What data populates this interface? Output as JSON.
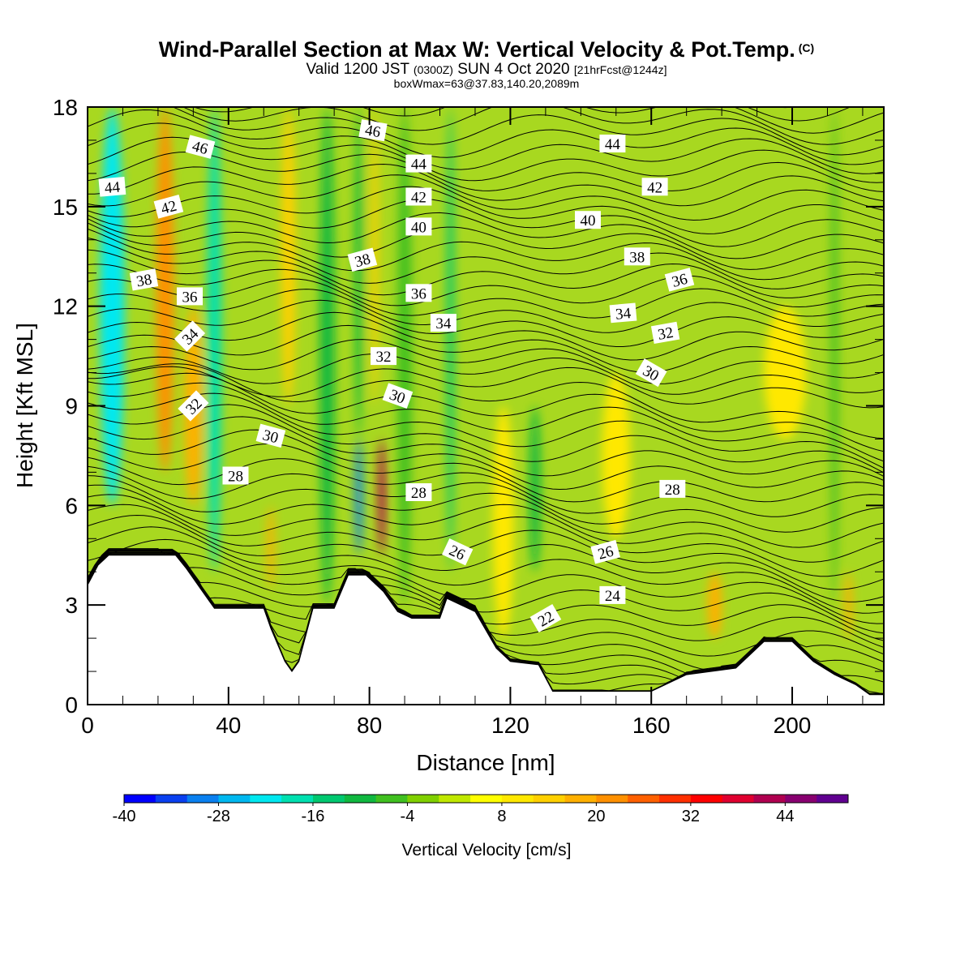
{
  "header": {
    "title": "Wind-Parallel Section at Max W: Vertical Velocity & Pot.Temp.",
    "title_mark": "(C)",
    "subtitle_valid": "Valid 1200 JST",
    "subtitle_utc": "(0300Z)",
    "subtitle_date": "SUN 4 Oct 2020",
    "subtitle_fcst": "[21hrFcst@1244z]",
    "subtitle2": "boxWmax=63@37.83,140.20,2089m"
  },
  "chart_data": {
    "type": "heatmap",
    "xlabel": "Distance [nm]",
    "ylabel": "Height [Kft MSL]",
    "xlim": [
      0,
      226
    ],
    "ylim": [
      0,
      18
    ],
    "xticks": [
      0,
      40,
      80,
      120,
      160,
      200
    ],
    "yticks": [
      0,
      3,
      6,
      9,
      12,
      15,
      18
    ],
    "colorbar": {
      "label": "Vertical Velocity [cm/s]",
      "tick_values": [
        -40,
        -28,
        -16,
        -4,
        8,
        20,
        32,
        44
      ],
      "tick_labels": [
        "-40",
        "-28",
        "-16",
        "-4",
        "8",
        "20",
        "32",
        "44"
      ],
      "bins": [
        {
          "from": -40,
          "to": -36,
          "color": "#0000ff"
        },
        {
          "from": -36,
          "to": -32,
          "color": "#0a40f0"
        },
        {
          "from": -32,
          "to": -28,
          "color": "#0a80f0"
        },
        {
          "from": -28,
          "to": -24,
          "color": "#00b8f0"
        },
        {
          "from": -24,
          "to": -20,
          "color": "#00e8f0"
        },
        {
          "from": -20,
          "to": -16,
          "color": "#00e0b0"
        },
        {
          "from": -16,
          "to": -12,
          "color": "#00c870"
        },
        {
          "from": -12,
          "to": -8,
          "color": "#10b840"
        },
        {
          "from": -8,
          "to": -4,
          "color": "#40c020"
        },
        {
          "from": -4,
          "to": 0,
          "color": "#80d000"
        },
        {
          "from": 0,
          "to": 4,
          "color": "#c0e800"
        },
        {
          "from": 4,
          "to": 8,
          "color": "#ffff00"
        },
        {
          "from": 8,
          "to": 12,
          "color": "#ffe800"
        },
        {
          "from": 12,
          "to": 16,
          "color": "#ffd000"
        },
        {
          "from": 16,
          "to": 20,
          "color": "#ffb000"
        },
        {
          "from": 20,
          "to": 24,
          "color": "#ff9000"
        },
        {
          "from": 24,
          "to": 28,
          "color": "#ff6000"
        },
        {
          "from": 28,
          "to": 32,
          "color": "#ff3000"
        },
        {
          "from": 32,
          "to": 36,
          "color": "#ff0000"
        },
        {
          "from": 36,
          "to": 40,
          "color": "#e00030"
        },
        {
          "from": 40,
          "to": 44,
          "color": "#b00050"
        },
        {
          "from": 44,
          "to": 48,
          "color": "#880070"
        },
        {
          "from": 48,
          "to": 52,
          "color": "#600090"
        }
      ]
    },
    "vertical_velocity_bands": [
      {
        "x": 7,
        "w": 7,
        "y0": 6,
        "y1": 18,
        "value": -22
      },
      {
        "x": 22,
        "w": 5,
        "y0": 7,
        "y1": 18,
        "value": 20
      },
      {
        "x": 30,
        "w": 5,
        "y0": 6,
        "y1": 12,
        "value": 16
      },
      {
        "x": 36,
        "w": 4,
        "y0": 4,
        "y1": 18,
        "value": -20
      },
      {
        "x": 52,
        "w": 2,
        "y0": 3.5,
        "y1": 6,
        "value": 18
      },
      {
        "x": 57,
        "w": 4,
        "y0": 9,
        "y1": 18,
        "value": 12
      },
      {
        "x": 68,
        "w": 4,
        "y0": 3,
        "y1": 18,
        "value": -10
      },
      {
        "x": 77,
        "w": 2,
        "y0": 4.5,
        "y1": 8,
        "value": -32
      },
      {
        "x": 77,
        "w": 2,
        "y0": 8,
        "y1": 18,
        "value": -10
      },
      {
        "x": 81.5,
        "w": 2,
        "y0": 9,
        "y1": 18,
        "value": 14
      },
      {
        "x": 83.5,
        "w": 2,
        "y0": 4.5,
        "y1": 8,
        "value": 40
      },
      {
        "x": 90,
        "w": 4,
        "y0": 3,
        "y1": 18,
        "value": -6
      },
      {
        "x": 103,
        "w": 2,
        "y0": 4,
        "y1": 18,
        "value": -16
      },
      {
        "x": 118,
        "w": 6,
        "y0": 2,
        "y1": 9,
        "value": 8
      },
      {
        "x": 127,
        "w": 3,
        "y0": 4,
        "y1": 9,
        "value": -12
      },
      {
        "x": 150,
        "w": 8,
        "y0": 5,
        "y1": 10,
        "value": 10
      },
      {
        "x": 178,
        "w": 4,
        "y0": 2,
        "y1": 4,
        "value": 16
      },
      {
        "x": 198,
        "w": 12,
        "y0": 8,
        "y1": 12,
        "value": 8
      },
      {
        "x": 212,
        "w": 2,
        "y0": 3,
        "y1": 18,
        "value": -8
      },
      {
        "x": 216,
        "w": 2,
        "y0": 2,
        "y1": 4,
        "value": 16
      }
    ],
    "theta_contours": {
      "levels": [
        22,
        24,
        26,
        28,
        30,
        32,
        34,
        36,
        38,
        40,
        42,
        44,
        46
      ],
      "labels": [
        {
          "text": "44",
          "x": 7,
          "y": 15.6,
          "rot": -5
        },
        {
          "text": "46",
          "x": 32,
          "y": 16.8,
          "rot": 15
        },
        {
          "text": "42",
          "x": 23,
          "y": 15,
          "rot": -15
        },
        {
          "text": "38",
          "x": 16,
          "y": 12.8,
          "rot": -10
        },
        {
          "text": "36",
          "x": 29,
          "y": 12.3,
          "rot": 0
        },
        {
          "text": "34",
          "x": 29,
          "y": 11.1,
          "rot": -45
        },
        {
          "text": "32",
          "x": 30,
          "y": 9,
          "rot": -45
        },
        {
          "text": "30",
          "x": 52,
          "y": 8.1,
          "rot": 15
        },
        {
          "text": "28",
          "x": 42,
          "y": 6.9,
          "rot": 0
        },
        {
          "text": "46",
          "x": 81,
          "y": 17.3,
          "rot": 10
        },
        {
          "text": "44",
          "x": 94,
          "y": 16.3,
          "rot": 0
        },
        {
          "text": "42",
          "x": 94,
          "y": 15.3,
          "rot": 0
        },
        {
          "text": "40",
          "x": 94,
          "y": 14.4,
          "rot": 0
        },
        {
          "text": "38",
          "x": 78,
          "y": 13.4,
          "rot": -15
        },
        {
          "text": "36",
          "x": 94,
          "y": 12.4,
          "rot": 0
        },
        {
          "text": "34",
          "x": 101,
          "y": 11.5,
          "rot": 0
        },
        {
          "text": "32",
          "x": 84,
          "y": 10.5,
          "rot": 0
        },
        {
          "text": "30",
          "x": 88,
          "y": 9.3,
          "rot": 20
        },
        {
          "text": "28",
          "x": 94,
          "y": 6.4,
          "rot": 0
        },
        {
          "text": "26",
          "x": 105,
          "y": 4.6,
          "rot": 25
        },
        {
          "text": "22",
          "x": 130,
          "y": 2.6,
          "rot": -30
        },
        {
          "text": "44",
          "x": 149,
          "y": 16.9,
          "rot": 0
        },
        {
          "text": "42",
          "x": 161,
          "y": 15.6,
          "rot": 0
        },
        {
          "text": "40",
          "x": 142,
          "y": 14.6,
          "rot": 0
        },
        {
          "text": "38",
          "x": 156,
          "y": 13.5,
          "rot": 0
        },
        {
          "text": "36",
          "x": 168,
          "y": 12.8,
          "rot": -15
        },
        {
          "text": "34",
          "x": 152,
          "y": 11.8,
          "rot": -5
        },
        {
          "text": "32",
          "x": 164,
          "y": 11.2,
          "rot": -10
        },
        {
          "text": "30",
          "x": 160,
          "y": 10,
          "rot": 30
        },
        {
          "text": "28",
          "x": 166,
          "y": 6.5,
          "rot": 0
        },
        {
          "text": "26",
          "x": 147,
          "y": 4.6,
          "rot": -15
        },
        {
          "text": "24",
          "x": 149,
          "y": 3.3,
          "rot": 0
        }
      ]
    },
    "terrain_profile": [
      [
        0,
        3.6
      ],
      [
        3,
        4.2
      ],
      [
        6,
        4.5
      ],
      [
        25,
        4.5
      ],
      [
        28,
        4.1
      ],
      [
        32,
        3.5
      ],
      [
        36,
        2.9
      ],
      [
        50,
        2.9
      ],
      [
        52,
        2.3
      ],
      [
        56,
        1.3
      ],
      [
        58,
        1.0
      ],
      [
        60,
        1.3
      ],
      [
        64,
        2.9
      ],
      [
        70,
        2.9
      ],
      [
        74,
        3.9
      ],
      [
        79,
        3.9
      ],
      [
        84,
        3.4
      ],
      [
        88,
        2.8
      ],
      [
        92,
        2.6
      ],
      [
        100,
        2.6
      ],
      [
        102,
        3.2
      ],
      [
        110,
        2.8
      ],
      [
        116,
        1.7
      ],
      [
        120,
        1.3
      ],
      [
        128,
        1.2
      ],
      [
        132,
        0.4
      ],
      [
        160,
        0.4
      ],
      [
        164,
        0.6
      ],
      [
        170,
        0.9
      ],
      [
        184,
        1.1
      ],
      [
        192,
        1.9
      ],
      [
        200,
        1.9
      ],
      [
        206,
        1.3
      ],
      [
        212,
        0.9
      ],
      [
        218,
        0.6
      ],
      [
        222,
        0.3
      ],
      [
        226,
        0.3
      ]
    ]
  }
}
